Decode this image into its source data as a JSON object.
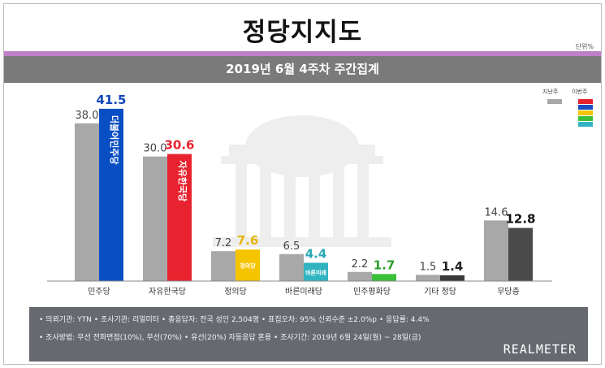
{
  "header": {
    "title": "정당지지도",
    "unit": "단위%",
    "subtitle": "2019년 6월 4주차 주간집계"
  },
  "legend": {
    "last_week": "지난주",
    "this_week": "이번주",
    "last_week_color": "#a8a8a8",
    "this_week_colors": [
      "#e8222f",
      "#1a4fc4",
      "#f5c400",
      "#3bbf3b",
      "#31b4c0"
    ]
  },
  "chart_data": {
    "type": "bar",
    "categories": [
      "민주당",
      "자유한국당",
      "정의당",
      "바른미래당",
      "민주평화당",
      "기타 정당",
      "무당층"
    ],
    "series": [
      {
        "name": "지난주",
        "values": [
          38.0,
          30.0,
          7.2,
          6.5,
          2.2,
          1.5,
          14.6
        ]
      },
      {
        "name": "이번주",
        "values": [
          41.5,
          30.6,
          7.6,
          4.4,
          1.7,
          1.4,
          12.8
        ]
      }
    ],
    "last_week_labels": [
      "38.0",
      "30.0",
      "7.2",
      "6.5",
      "2.2",
      "1.5",
      "14.6"
    ],
    "this_week_labels": [
      "41.5",
      "30.6",
      "7.6",
      "4.4",
      "1.7",
      "1.4",
      "12.8"
    ],
    "this_week_colors": [
      "#0a4ec4",
      "#e8222f",
      "#f5c400",
      "#31b4c0",
      "#3bbf3b",
      "#3a3a3a",
      "#4a4a4a"
    ],
    "this_week_label_colors": [
      "#1046b8",
      "#e8222f",
      "#e6b400",
      "#2aa8b4",
      "#2a9e2a",
      "#222222",
      "#111111"
    ],
    "bar_logos": [
      "더불어민주당",
      "자유한국당",
      "정의당",
      "바른미래",
      "",
      "",
      ""
    ],
    "ylim": [
      0,
      45
    ],
    "grid": false
  },
  "footer": {
    "line1": "• 의뢰기관: YTN  • 조사기관: 리얼미터  • 총응답자: 전국 성인 2,504명  • 표집오차: 95% 신뢰수준 ±2.0%p  • 응답률: 4.4%",
    "line2": "• 조사방법: 무선 전화면접(10%), 무선(70%) • 유선(20%) 자동응답 혼용  • 조사기간: 2019년 6월 24일(월) ~ 28일(금)",
    "brand": "REALMETER"
  }
}
